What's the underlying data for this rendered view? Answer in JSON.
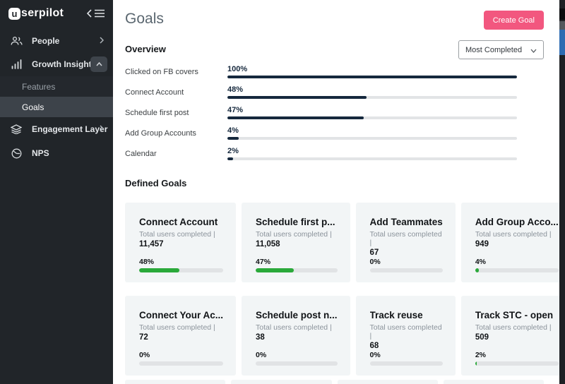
{
  "app": {
    "logo_badge": "u",
    "logo_rest": "serpilot"
  },
  "sidebar": {
    "items": [
      {
        "label": "People"
      },
      {
        "label": "Growth Insights"
      },
      {
        "label": "Features"
      },
      {
        "label": "Goals"
      },
      {
        "label": "Engagement Layer"
      },
      {
        "label": "NPS"
      }
    ]
  },
  "header": {
    "title": "Goals",
    "create_button_label": "Create Goal"
  },
  "overview": {
    "heading": "Overview",
    "sort_selected": "Most Completed",
    "bars": [
      {
        "label": "Clicked on FB covers",
        "value_label": "100%",
        "pct": 100
      },
      {
        "label": "Connect Account",
        "value_label": "48%",
        "pct": 48
      },
      {
        "label": "Schedule first post",
        "value_label": "47%",
        "pct": 47
      },
      {
        "label": "Add Group Accounts",
        "value_label": "4%",
        "pct": 4
      },
      {
        "label": "Calendar",
        "value_label": "2%",
        "pct": 2
      }
    ]
  },
  "defined_goals": {
    "heading": "Defined Goals",
    "completed_caption": "Total users completed |",
    "cards": [
      {
        "title": "Connect Account",
        "total": "11,457",
        "pct_label": "48%",
        "pct": 48
      },
      {
        "title": "Schedule first p...",
        "total": "11,058",
        "pct_label": "47%",
        "pct": 47
      },
      {
        "title": "Add Teammates",
        "total": "67",
        "pct_label": "0%",
        "pct": 0
      },
      {
        "title": "Add Group Acco...",
        "total": "949",
        "pct_label": "4%",
        "pct": 4
      },
      {
        "title": "Connect Your Ac...",
        "total": "72",
        "pct_label": "0%",
        "pct": 0
      },
      {
        "title": "Schedule post n...",
        "total": "38",
        "pct_label": "0%",
        "pct": 0
      },
      {
        "title": "Track reuse",
        "total": "68",
        "pct_label": "0%",
        "pct": 0
      },
      {
        "title": "Track STC - open",
        "total": "509",
        "pct_label": "2%",
        "pct": 2
      }
    ]
  },
  "colors": {
    "accent_pink": "#f2577f",
    "bar_navy": "#15283d",
    "progress_green": "#2aa93a",
    "sidebar_bg": "#212529",
    "card_bg": "#f2f5f6"
  }
}
